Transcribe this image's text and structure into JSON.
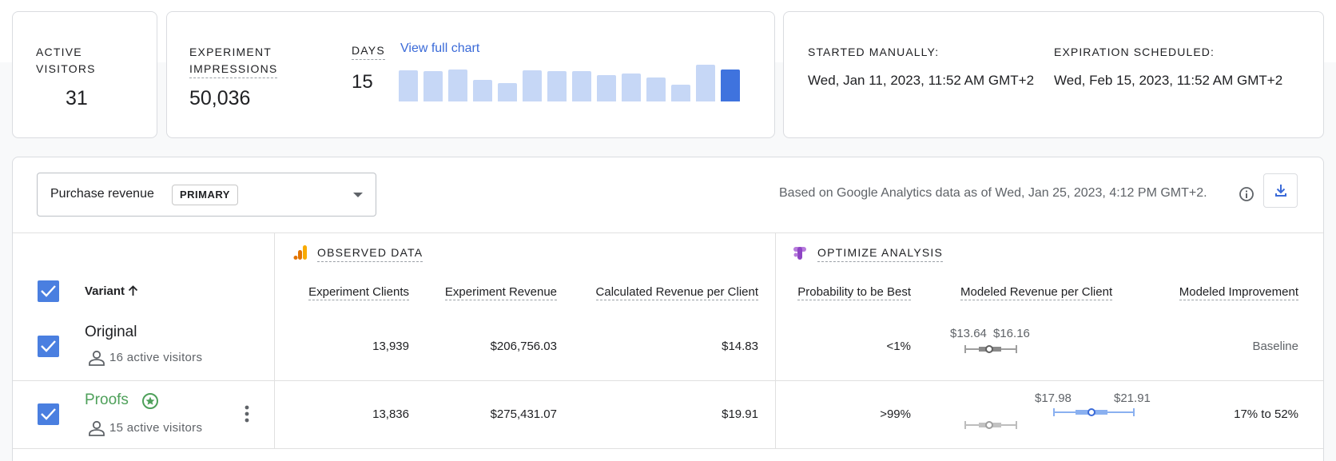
{
  "stats": {
    "active_visitors_label_1": "ACTIVE",
    "active_visitors_label_2": "VISITORS",
    "active_visitors_value": "31",
    "impressions_label_1": "EXPERIMENT",
    "impressions_label_2": "IMPRESSIONS",
    "impressions_value": "50,036",
    "days_label": "DAYS",
    "days_value": "15",
    "view_chart_link": "View full chart"
  },
  "chart_data": {
    "type": "bar",
    "categories": [
      "1",
      "2",
      "3",
      "4",
      "5",
      "6",
      "7",
      "8",
      "9",
      "10",
      "11",
      "12",
      "13",
      "14"
    ],
    "values": [
      30,
      29,
      31,
      21,
      18,
      30,
      29,
      29,
      25,
      27,
      23,
      16,
      35,
      31
    ],
    "highlight_index": 13,
    "colors": {
      "bar": "#c6d7f6",
      "active": "#3f73de"
    }
  },
  "schedule": {
    "started_label": "STARTED MANUALLY:",
    "started_value": "Wed, Jan 11, 2023, 11:52 AM GMT+2",
    "expiration_label": "EXPIRATION SCHEDULED:",
    "expiration_value": "Wed, Feb 15, 2023, 11:52 AM GMT+2"
  },
  "objective": {
    "selected": "Purchase revenue",
    "chip": "PRIMARY"
  },
  "data_note": "Based on Google Analytics data as of Wed, Jan 25, 2023, 4:12 PM GMT+2.",
  "sections": {
    "observed": "OBSERVED DATA",
    "analysis": "OPTIMIZE ANALYSIS"
  },
  "columns": {
    "variant": "Variant",
    "clients": "Experiment Clients",
    "revenue": "Experiment Revenue",
    "rpc": "Calculated Revenue per Client",
    "prob": "Probability to be Best",
    "modeled_rpc": "Modeled Revenue per Client",
    "improvement": "Modeled Improvement"
  },
  "rows": [
    {
      "name": "Original",
      "visitors": "16 active visitors",
      "clients": "13,939",
      "revenue": "$206,756.03",
      "rpc": "$14.83",
      "prob": "<1%",
      "range_low": "$13.64",
      "range_high": "$16.16",
      "improvement": "Baseline"
    },
    {
      "name": "Proofs",
      "visitors": "15 active visitors",
      "clients": "13,836",
      "revenue": "$275,431.07",
      "rpc": "$19.91",
      "prob": ">99%",
      "range_low": "$17.98",
      "range_high": "$21.91",
      "improvement": "17% to 52%"
    }
  ],
  "colors": {
    "accent": "#3a6ad8",
    "winner": "#4ea05a",
    "checkbox": "#4a7fe0"
  }
}
